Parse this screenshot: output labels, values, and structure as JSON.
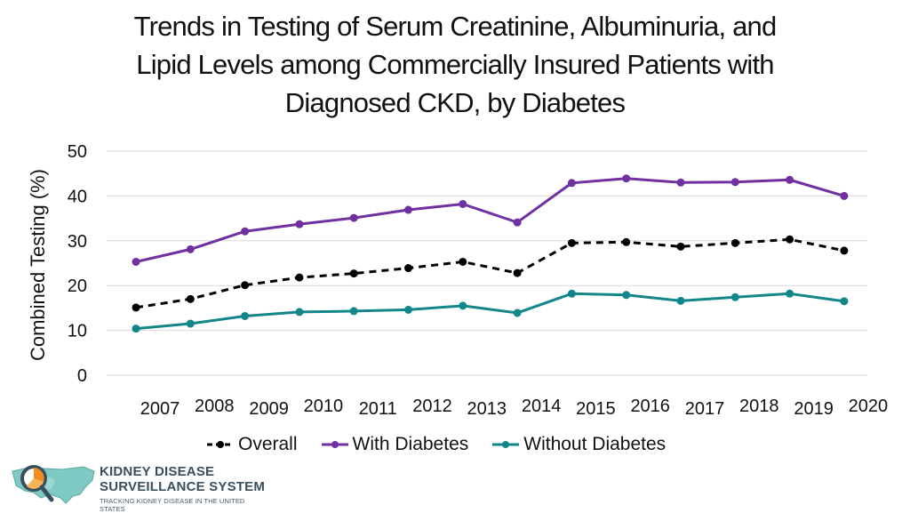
{
  "title_lines": [
    "Trends in Testing of Serum Creatinine, Albuminuria, and",
    "Lipid Levels among Commercially Insured Patients with",
    "Diagnosed CKD, by Diabetes"
  ],
  "chart_data": {
    "type": "line",
    "title": "Trends in Testing of Serum Creatinine, Albuminuria, and Lipid Levels among Commercially Insured Patients with Diagnosed CKD, by Diabetes",
    "xlabel": "",
    "ylabel": "Combined Testing (%)",
    "ylim": [
      0,
      50
    ],
    "yticks": [
      "0",
      "10",
      "20",
      "30",
      "40",
      "50"
    ],
    "grid": true,
    "legend_position": "bottom",
    "x": [
      "2007",
      "2008",
      "2009",
      "2010",
      "2011",
      "2012",
      "2013",
      "2014",
      "2015",
      "2016",
      "2017",
      "2018",
      "2019",
      "2020"
    ],
    "series": [
      {
        "name": "Overall",
        "color": "#000000",
        "dashed": true,
        "values": [
          15.1,
          17.0,
          20.1,
          21.8,
          22.7,
          23.9,
          25.3,
          22.8,
          29.5,
          29.7,
          28.7,
          29.5,
          30.3,
          27.8
        ]
      },
      {
        "name": "With Diabetes",
        "color": "#7030a0",
        "dashed": false,
        "values": [
          25.3,
          28.1,
          32.1,
          33.7,
          35.1,
          36.9,
          38.2,
          34.1,
          42.9,
          43.9,
          43.0,
          43.1,
          43.6,
          40.0
        ]
      },
      {
        "name": "Without Diabetes",
        "color": "#12868a",
        "dashed": false,
        "values": [
          10.4,
          11.5,
          13.2,
          14.1,
          14.3,
          14.6,
          15.5,
          13.9,
          18.2,
          17.9,
          16.6,
          17.4,
          18.2,
          16.5
        ]
      }
    ]
  },
  "logo": {
    "line1": "KIDNEY DISEASE",
    "line2": "SURVEILLANCE SYSTEM",
    "line3": "TRACKING KIDNEY DISEASE IN THE UNITED STATES"
  }
}
